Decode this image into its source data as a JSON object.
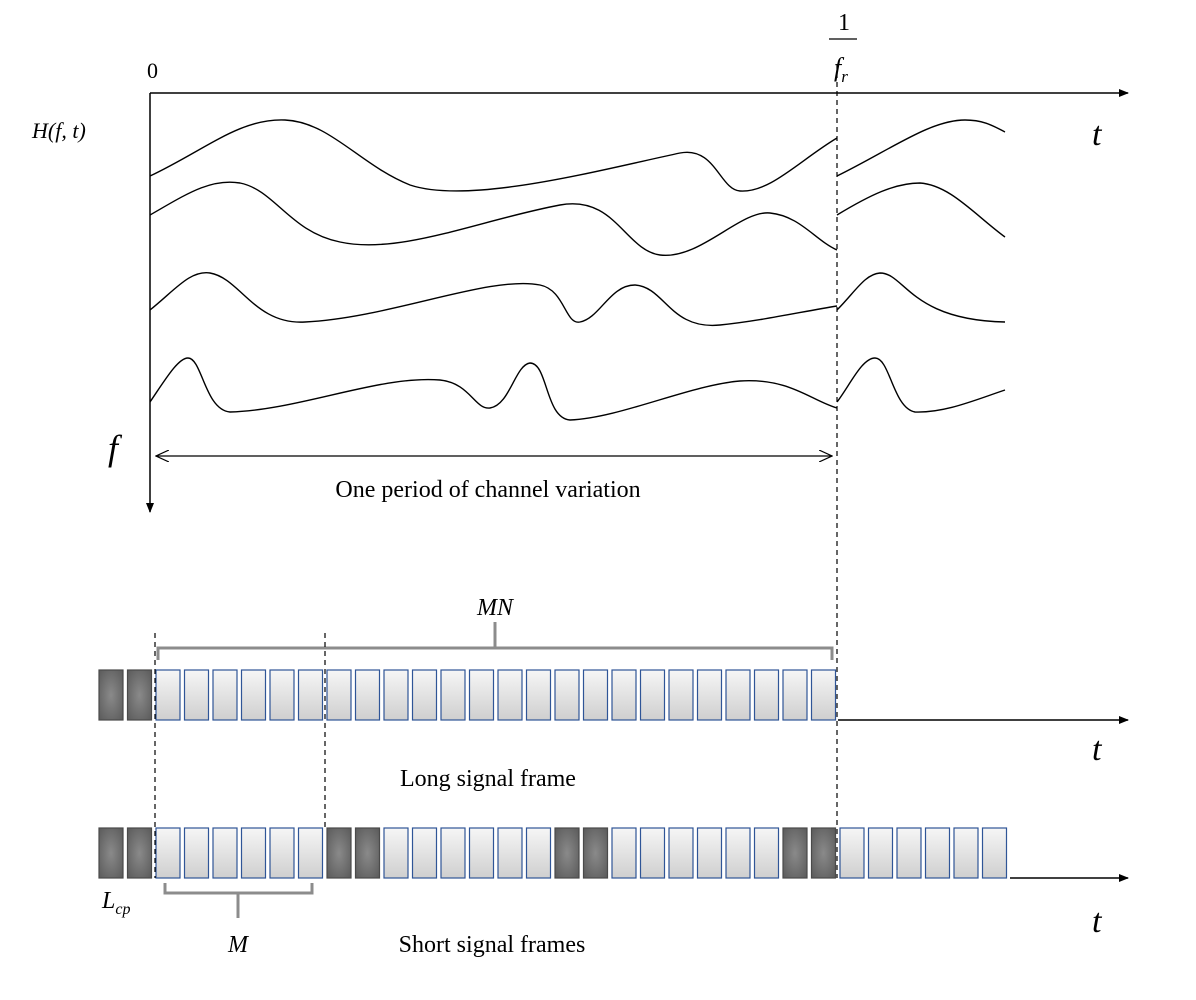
{
  "labels": {
    "origin": "0",
    "channel": "H(f, t)",
    "freq_axis": "f",
    "time_axis_top": "t",
    "period_marker_num": "1",
    "period_marker_den": "f",
    "period_marker_sub": "r",
    "period_caption": "One period of channel variation",
    "mn_label": "MN",
    "time_axis_long": "t",
    "long_caption": "Long signal frame",
    "time_axis_short": "t",
    "short_caption": "Short signal frames",
    "lcp_main": "L",
    "lcp_sub": "cp",
    "m_label": "M"
  },
  "colors": {
    "line": "#000000",
    "cp_block_fill": "#707070",
    "data_block_fill": "#e4e4e4",
    "data_block_border": "#2f5597",
    "brace": "#8c8c8c"
  },
  "frames": {
    "long": [
      "cp",
      "cp",
      "data",
      "data",
      "data",
      "data",
      "data",
      "data",
      "data",
      "data",
      "data",
      "data",
      "data",
      "data",
      "data",
      "data",
      "data",
      "data",
      "data",
      "data",
      "data",
      "data",
      "data",
      "data",
      "data",
      "data"
    ],
    "short": [
      "cp",
      "cp",
      "data",
      "data",
      "data",
      "data",
      "data",
      "data",
      "cp",
      "cp",
      "data",
      "data",
      "data",
      "data",
      "data",
      "data",
      "cp",
      "cp",
      "data",
      "data",
      "data",
      "data",
      "data",
      "data",
      "cp",
      "cp",
      "data",
      "data",
      "data",
      "data",
      "data",
      "data"
    ]
  }
}
